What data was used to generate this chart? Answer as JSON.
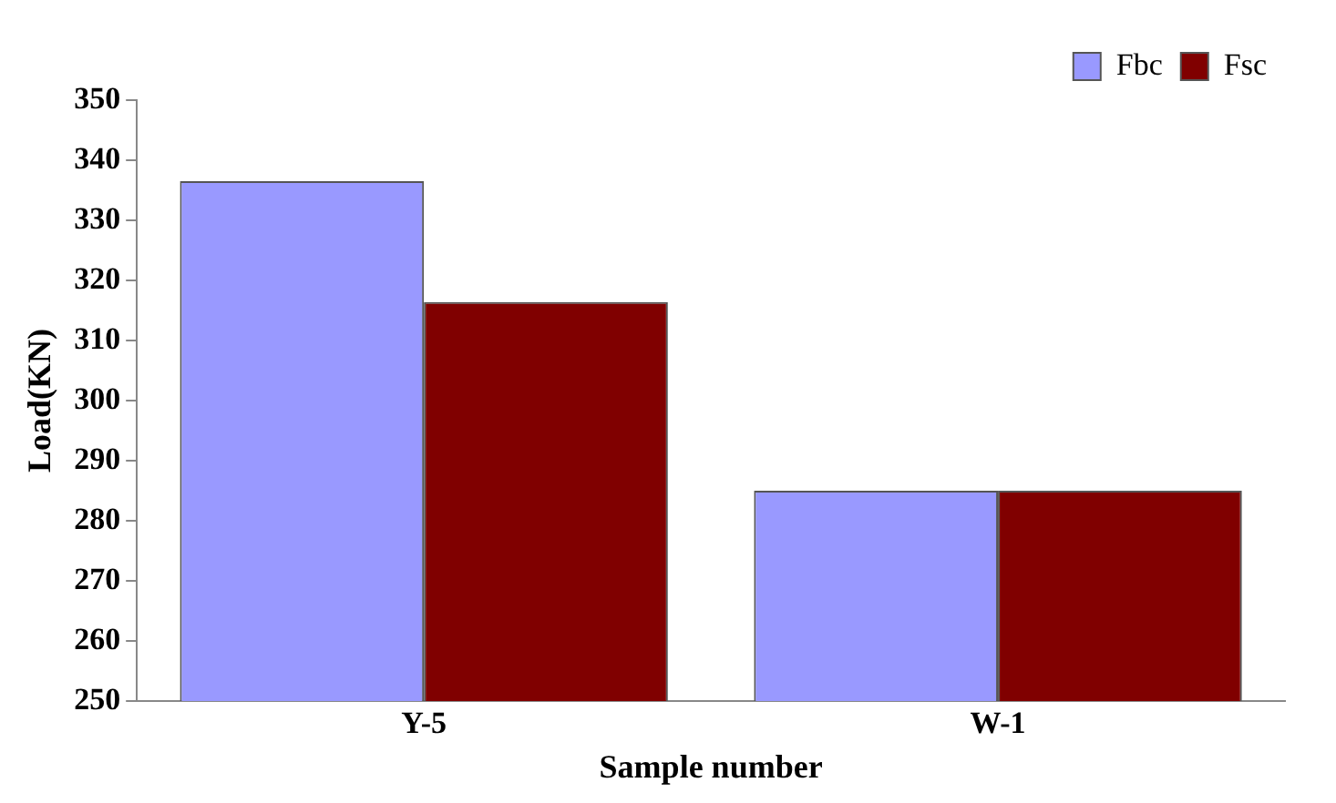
{
  "chart_data": {
    "type": "bar",
    "xlabel": "Sample number",
    "ylabel": "Load(KN)",
    "categories": [
      "Y-5",
      "W-1"
    ],
    "series": [
      {
        "name": "Fbc",
        "color": "#9999ff",
        "values": [
          336.5,
          285
        ]
      },
      {
        "name": "Fsc",
        "color": "#800000",
        "values": [
          316.4,
          285
        ]
      }
    ],
    "ylim": [
      250,
      350
    ],
    "yticks": [
      250,
      260,
      270,
      280,
      290,
      300,
      310,
      320,
      330,
      340,
      350
    ],
    "grid": false,
    "legend": "top right"
  }
}
